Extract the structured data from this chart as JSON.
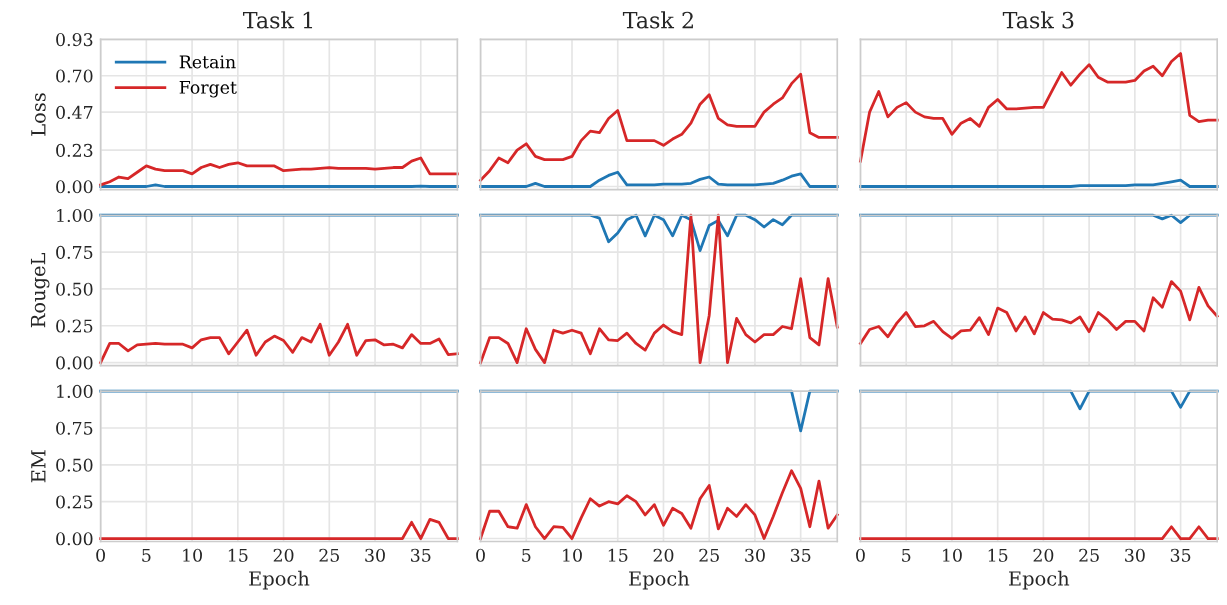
{
  "chart_data": [
    {
      "type": "line",
      "title": "Task 1",
      "ylabel": "Loss",
      "x": [
        0,
        1,
        2,
        3,
        4,
        5,
        6,
        7,
        8,
        9,
        10,
        11,
        12,
        13,
        14,
        15,
        16,
        17,
        18,
        19,
        20,
        21,
        22,
        23,
        24,
        25,
        26,
        27,
        28,
        29,
        30,
        31,
        32,
        33,
        34,
        35,
        36,
        37,
        38,
        39
      ],
      "xlim": [
        0,
        39
      ],
      "xticks": [
        0,
        5,
        10,
        15,
        20,
        25,
        30,
        35
      ],
      "ylim": [
        -0.02,
        0.93
      ],
      "yticks": [
        {
          "value": 0,
          "label": "0.00"
        },
        {
          "value": 0.23,
          "label": "0.23"
        },
        {
          "value": 0.47,
          "label": "0.47"
        },
        {
          "value": 0.7,
          "label": "0.70"
        },
        {
          "value": 0.93,
          "label": "0.93"
        }
      ],
      "tick_labels": "y",
      "grid": true,
      "legend": "top left",
      "series": [
        {
          "name": "Retain",
          "color": "#1f77b4",
          "values": [
            0,
            0,
            0,
            0,
            0,
            0,
            0.01,
            0,
            0,
            0,
            0,
            0,
            0,
            0,
            0,
            0,
            0,
            0,
            0,
            0,
            0,
            0,
            0,
            0,
            0,
            0,
            0,
            0,
            0,
            0,
            0,
            0,
            0,
            0,
            0,
            0.003,
            0,
            0,
            0,
            0
          ]
        },
        {
          "name": "Forget",
          "color": "#d62728",
          "values": [
            0.01,
            0.03,
            0.06,
            0.05,
            0.09,
            0.13,
            0.11,
            0.1,
            0.1,
            0.1,
            0.08,
            0.12,
            0.14,
            0.12,
            0.14,
            0.15,
            0.13,
            0.13,
            0.13,
            0.13,
            0.1,
            0.105,
            0.11,
            0.11,
            0.115,
            0.12,
            0.115,
            0.115,
            0.115,
            0.115,
            0.11,
            0.115,
            0.12,
            0.12,
            0.16,
            0.18,
            0.08,
            0.08,
            0.08,
            0.08
          ]
        }
      ]
    },
    {
      "type": "line",
      "title": "Task 2",
      "x": [
        0,
        1,
        2,
        3,
        4,
        5,
        6,
        7,
        8,
        9,
        10,
        11,
        12,
        13,
        14,
        15,
        16,
        17,
        18,
        19,
        20,
        21,
        22,
        23,
        24,
        25,
        26,
        27,
        28,
        29,
        30,
        31,
        32,
        33,
        34,
        35,
        36,
        37,
        38,
        39
      ],
      "xlim": [
        0,
        39
      ],
      "xticks": [
        0,
        5,
        10,
        15,
        20,
        25,
        30,
        35
      ],
      "ylim": [
        -0.02,
        0.93
      ],
      "yticks": [
        0,
        0.23,
        0.47,
        0.7,
        0.93
      ],
      "tick_labels": false,
      "grid": true,
      "series": [
        {
          "color": "#1f77b4",
          "values": [
            0,
            0,
            0,
            0,
            0,
            0,
            0.02,
            0,
            0,
            0,
            0,
            0,
            0,
            0.04,
            0.07,
            0.09,
            0.01,
            0.01,
            0.01,
            0.01,
            0.015,
            0.015,
            0.015,
            0.02,
            0.045,
            0.06,
            0.015,
            0.01,
            0.01,
            0.01,
            0.01,
            0.015,
            0.02,
            0.04,
            0.065,
            0.08,
            0,
            0,
            0,
            0
          ]
        },
        {
          "color": "#d62728",
          "values": [
            0.04,
            0.1,
            0.18,
            0.15,
            0.23,
            0.27,
            0.19,
            0.17,
            0.17,
            0.17,
            0.19,
            0.29,
            0.35,
            0.34,
            0.43,
            0.48,
            0.29,
            0.29,
            0.29,
            0.29,
            0.26,
            0.3,
            0.33,
            0.4,
            0.52,
            0.58,
            0.43,
            0.39,
            0.38,
            0.38,
            0.38,
            0.47,
            0.52,
            0.56,
            0.65,
            0.71,
            0.34,
            0.31,
            0.31,
            0.31
          ]
        }
      ]
    },
    {
      "type": "line",
      "title": "Task 3",
      "x": [
        0,
        1,
        2,
        3,
        4,
        5,
        6,
        7,
        8,
        9,
        10,
        11,
        12,
        13,
        14,
        15,
        16,
        17,
        18,
        19,
        20,
        21,
        22,
        23,
        24,
        25,
        26,
        27,
        28,
        29,
        30,
        31,
        32,
        33,
        34,
        35,
        36,
        37,
        38,
        39
      ],
      "xlim": [
        0,
        39
      ],
      "xticks": [
        0,
        5,
        10,
        15,
        20,
        25,
        30,
        35
      ],
      "ylim": [
        -0.02,
        0.93
      ],
      "yticks": [
        0,
        0.23,
        0.47,
        0.7,
        0.93
      ],
      "tick_labels": false,
      "grid": true,
      "series": [
        {
          "color": "#1f77b4",
          "values": [
            0,
            0,
            0,
            0,
            0,
            0,
            0,
            0,
            0,
            0,
            0,
            0,
            0,
            0,
            0,
            0,
            0,
            0,
            0,
            0,
            0,
            0,
            0,
            0,
            0.005,
            0.005,
            0.005,
            0.005,
            0.005,
            0.005,
            0.01,
            0.01,
            0.01,
            0.02,
            0.03,
            0.04,
            0,
            0,
            0,
            0
          ]
        },
        {
          "color": "#d62728",
          "values": [
            0.16,
            0.47,
            0.6,
            0.44,
            0.5,
            0.53,
            0.47,
            0.44,
            0.43,
            0.43,
            0.33,
            0.4,
            0.43,
            0.38,
            0.5,
            0.55,
            0.49,
            0.49,
            0.495,
            0.5,
            0.5,
            0.61,
            0.72,
            0.64,
            0.71,
            0.77,
            0.69,
            0.66,
            0.66,
            0.66,
            0.67,
            0.73,
            0.76,
            0.7,
            0.79,
            0.84,
            0.45,
            0.41,
            0.42,
            0.42
          ]
        }
      ]
    },
    {
      "type": "line",
      "ylabel": "RougeL",
      "x": [
        0,
        1,
        2,
        3,
        4,
        5,
        6,
        7,
        8,
        9,
        10,
        11,
        12,
        13,
        14,
        15,
        16,
        17,
        18,
        19,
        20,
        21,
        22,
        23,
        24,
        25,
        26,
        27,
        28,
        29,
        30,
        31,
        32,
        33,
        34,
        35,
        36,
        37,
        38,
        39
      ],
      "xlim": [
        0,
        39
      ],
      "xticks": [
        0,
        5,
        10,
        15,
        20,
        25,
        30,
        35
      ],
      "ylim": [
        -0.02,
        1.0
      ],
      "yticks": [
        {
          "value": 0,
          "label": "0.00"
        },
        {
          "value": 0.25,
          "label": "0.25"
        },
        {
          "value": 0.5,
          "label": "0.50"
        },
        {
          "value": 0.75,
          "label": "0.75"
        },
        {
          "value": 1,
          "label": "1.00"
        }
      ],
      "tick_labels": "y",
      "grid": true,
      "series": [
        {
          "color": "#1f77b4",
          "values": [
            1,
            1,
            1,
            1,
            1,
            1,
            1,
            1,
            1,
            1,
            1,
            1,
            1,
            1,
            1,
            1,
            1,
            1,
            1,
            1,
            1,
            1,
            1,
            1,
            1,
            1,
            1,
            1,
            1,
            1,
            1,
            1,
            1,
            1,
            1,
            1,
            1,
            1,
            1,
            1
          ]
        },
        {
          "color": "#d62728",
          "values": [
            0,
            0.13,
            0.13,
            0.08,
            0.12,
            0.125,
            0.13,
            0.125,
            0.125,
            0.125,
            0.1,
            0.155,
            0.17,
            0.17,
            0.06,
            0.14,
            0.22,
            0.05,
            0.14,
            0.18,
            0.15,
            0.07,
            0.17,
            0.14,
            0.26,
            0.05,
            0.14,
            0.26,
            0.05,
            0.15,
            0.155,
            0.12,
            0.125,
            0.1,
            0.19,
            0.13,
            0.13,
            0.16,
            0.055,
            0.06
          ]
        }
      ]
    },
    {
      "type": "line",
      "x": [
        0,
        1,
        2,
        3,
        4,
        5,
        6,
        7,
        8,
        9,
        10,
        11,
        12,
        13,
        14,
        15,
        16,
        17,
        18,
        19,
        20,
        21,
        22,
        23,
        24,
        25,
        26,
        27,
        28,
        29,
        30,
        31,
        32,
        33,
        34,
        35,
        36,
        37,
        38,
        39
      ],
      "xlim": [
        0,
        39
      ],
      "xticks": [
        0,
        5,
        10,
        15,
        20,
        25,
        30,
        35
      ],
      "ylim": [
        -0.02,
        1.0
      ],
      "yticks": [
        0,
        0.25,
        0.5,
        0.75,
        1
      ],
      "tick_labels": false,
      "grid": true,
      "series": [
        {
          "color": "#1f77b4",
          "values": [
            1,
            1,
            1,
            1,
            1,
            1,
            1,
            1,
            1,
            1,
            1,
            1,
            1,
            0.98,
            0.82,
            0.88,
            0.97,
            1,
            0.86,
            1,
            0.97,
            0.86,
            1,
            0.97,
            0.76,
            0.93,
            0.965,
            0.86,
            1,
            1,
            0.97,
            0.92,
            0.97,
            0.935,
            1,
            1,
            1,
            1,
            1,
            1
          ]
        },
        {
          "color": "#d62728",
          "values": [
            0,
            0.17,
            0.17,
            0.13,
            0,
            0.23,
            0.09,
            0,
            0.22,
            0.2,
            0.22,
            0.2,
            0.06,
            0.23,
            0.155,
            0.15,
            0.2,
            0.13,
            0.085,
            0.2,
            0.255,
            0.21,
            0.19,
            1,
            0,
            0.32,
            1,
            0,
            0.3,
            0.19,
            0.14,
            0.19,
            0.19,
            0.245,
            0.23,
            0.57,
            0.17,
            0.12,
            0.57,
            0.24
          ]
        }
      ]
    },
    {
      "type": "line",
      "x": [
        0,
        1,
        2,
        3,
        4,
        5,
        6,
        7,
        8,
        9,
        10,
        11,
        12,
        13,
        14,
        15,
        16,
        17,
        18,
        19,
        20,
        21,
        22,
        23,
        24,
        25,
        26,
        27,
        28,
        29,
        30,
        31,
        32,
        33,
        34,
        35,
        36,
        37,
        38,
        39
      ],
      "xlim": [
        0,
        39
      ],
      "xticks": [
        0,
        5,
        10,
        15,
        20,
        25,
        30,
        35
      ],
      "ylim": [
        -0.02,
        1.0
      ],
      "yticks": [
        0,
        0.25,
        0.5,
        0.75,
        1
      ],
      "tick_labels": false,
      "grid": true,
      "series": [
        {
          "color": "#1f77b4",
          "values": [
            1,
            1,
            1,
            1,
            1,
            1,
            1,
            1,
            1,
            1,
            1,
            1,
            1,
            1,
            1,
            1,
            1,
            1,
            1,
            1,
            1,
            1,
            1,
            1,
            1,
            1,
            1,
            1,
            1,
            1,
            1,
            1,
            1,
            0.975,
            1,
            0.95,
            1,
            1,
            1,
            1
          ]
        },
        {
          "color": "#d62728",
          "values": [
            0.13,
            0.225,
            0.245,
            0.175,
            0.27,
            0.34,
            0.245,
            0.25,
            0.28,
            0.21,
            0.165,
            0.215,
            0.22,
            0.305,
            0.19,
            0.37,
            0.34,
            0.215,
            0.31,
            0.195,
            0.34,
            0.295,
            0.29,
            0.27,
            0.31,
            0.21,
            0.34,
            0.29,
            0.225,
            0.28,
            0.28,
            0.215,
            0.44,
            0.375,
            0.55,
            0.485,
            0.29,
            0.51,
            0.385,
            0.315
          ]
        }
      ]
    },
    {
      "type": "line",
      "ylabel": "EM",
      "xlabel": "Epoch",
      "x": [
        0,
        1,
        2,
        3,
        4,
        5,
        6,
        7,
        8,
        9,
        10,
        11,
        12,
        13,
        14,
        15,
        16,
        17,
        18,
        19,
        20,
        21,
        22,
        23,
        24,
        25,
        26,
        27,
        28,
        29,
        30,
        31,
        32,
        33,
        34,
        35,
        36,
        37,
        38,
        39
      ],
      "xlim": [
        0,
        39
      ],
      "xticks": [
        0,
        5,
        10,
        15,
        20,
        25,
        30,
        35
      ],
      "ylim": [
        -0.02,
        1.0
      ],
      "yticks": [
        {
          "value": 0,
          "label": "0.00"
        },
        {
          "value": 0.25,
          "label": "0.25"
        },
        {
          "value": 0.5,
          "label": "0.50"
        },
        {
          "value": 0.75,
          "label": "0.75"
        },
        {
          "value": 1,
          "label": "1.00"
        }
      ],
      "grid": true,
      "series": [
        {
          "color": "#1f77b4",
          "values": [
            1,
            1,
            1,
            1,
            1,
            1,
            1,
            1,
            1,
            1,
            1,
            1,
            1,
            1,
            1,
            1,
            1,
            1,
            1,
            1,
            1,
            1,
            1,
            1,
            1,
            1,
            1,
            1,
            1,
            1,
            1,
            1,
            1,
            1,
            1,
            1,
            1,
            1,
            1,
            1
          ]
        },
        {
          "color": "#d62728",
          "values": [
            0,
            0,
            0,
            0,
            0,
            0,
            0,
            0,
            0,
            0,
            0,
            0,
            0,
            0,
            0,
            0,
            0,
            0,
            0,
            0,
            0,
            0,
            0,
            0,
            0,
            0,
            0,
            0,
            0,
            0,
            0,
            0,
            0,
            0,
            0.11,
            0,
            0.13,
            0.11,
            0,
            0
          ]
        }
      ]
    },
    {
      "type": "line",
      "xlabel": "Epoch",
      "x": [
        0,
        1,
        2,
        3,
        4,
        5,
        6,
        7,
        8,
        9,
        10,
        11,
        12,
        13,
        14,
        15,
        16,
        17,
        18,
        19,
        20,
        21,
        22,
        23,
        24,
        25,
        26,
        27,
        28,
        29,
        30,
        31,
        32,
        33,
        34,
        35,
        36,
        37,
        38,
        39
      ],
      "xlim": [
        0,
        39
      ],
      "xticks": [
        0,
        5,
        10,
        15,
        20,
        25,
        30,
        35
      ],
      "ylim": [
        -0.02,
        1.0
      ],
      "yticks": [
        0,
        0.25,
        0.5,
        0.75,
        1
      ],
      "tick_labels": "x",
      "grid": true,
      "series": [
        {
          "color": "#1f77b4",
          "values": [
            1,
            1,
            1,
            1,
            1,
            1,
            1,
            1,
            1,
            1,
            1,
            1,
            1,
            1,
            1,
            1,
            1,
            1,
            1,
            1,
            1,
            1,
            1,
            1,
            1,
            1,
            1,
            1,
            1,
            1,
            1,
            1,
            1,
            1,
            1,
            0.73,
            1,
            1,
            1,
            1
          ]
        },
        {
          "color": "#d62728",
          "values": [
            0,
            0.185,
            0.185,
            0.08,
            0.07,
            0.23,
            0.08,
            0,
            0.08,
            0.075,
            0,
            0.14,
            0.27,
            0.22,
            0.25,
            0.235,
            0.29,
            0.25,
            0.16,
            0.23,
            0.09,
            0.205,
            0.17,
            0.07,
            0.27,
            0.36,
            0.065,
            0.205,
            0.15,
            0.23,
            0.16,
            0,
            0.15,
            0.31,
            0.46,
            0.34,
            0.08,
            0.39,
            0.07,
            0.16
          ]
        }
      ]
    },
    {
      "type": "line",
      "xlabel": "Epoch",
      "x": [
        0,
        1,
        2,
        3,
        4,
        5,
        6,
        7,
        8,
        9,
        10,
        11,
        12,
        13,
        14,
        15,
        16,
        17,
        18,
        19,
        20,
        21,
        22,
        23,
        24,
        25,
        26,
        27,
        28,
        29,
        30,
        31,
        32,
        33,
        34,
        35,
        36,
        37,
        38,
        39
      ],
      "xlim": [
        0,
        39
      ],
      "xticks": [
        0,
        5,
        10,
        15,
        20,
        25,
        30,
        35
      ],
      "ylim": [
        -0.02,
        1.0
      ],
      "yticks": [
        0,
        0.25,
        0.5,
        0.75,
        1
      ],
      "tick_labels": "x",
      "grid": true,
      "series": [
        {
          "color": "#1f77b4",
          "values": [
            1,
            1,
            1,
            1,
            1,
            1,
            1,
            1,
            1,
            1,
            1,
            1,
            1,
            1,
            1,
            1,
            1,
            1,
            1,
            1,
            1,
            1,
            1,
            1,
            0.88,
            1,
            1,
            1,
            1,
            1,
            1,
            1,
            1,
            1,
            1,
            0.89,
            1,
            1,
            1,
            1
          ]
        },
        {
          "color": "#d62728",
          "values": [
            0,
            0,
            0,
            0,
            0,
            0,
            0,
            0,
            0,
            0,
            0,
            0,
            0,
            0,
            0,
            0,
            0,
            0,
            0,
            0,
            0,
            0,
            0,
            0,
            0,
            0,
            0,
            0,
            0,
            0,
            0,
            0,
            0,
            0,
            0.08,
            0,
            0,
            0.08,
            0,
            0
          ]
        }
      ]
    }
  ]
}
